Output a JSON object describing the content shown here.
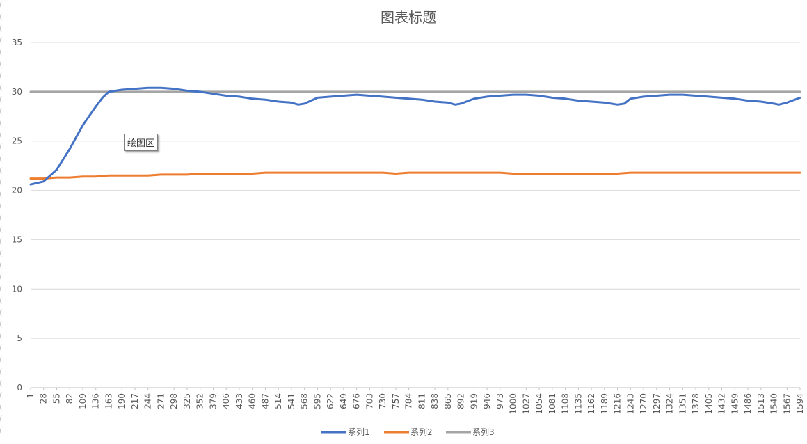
{
  "chart_data": {
    "type": "line",
    "title": "图表标题",
    "xlabel": "",
    "ylabel": "",
    "ylim": [
      0,
      35
    ],
    "yticks": [
      0,
      5,
      10,
      15,
      20,
      25,
      30,
      35
    ],
    "xlim": [
      1,
      1594
    ],
    "x_tick_labels": [
      1,
      28,
      55,
      82,
      109,
      136,
      163,
      190,
      217,
      244,
      271,
      298,
      325,
      352,
      379,
      406,
      433,
      460,
      487,
      514,
      541,
      568,
      595,
      622,
      649,
      676,
      703,
      730,
      757,
      784,
      811,
      838,
      865,
      892,
      919,
      946,
      973,
      1000,
      1027,
      1054,
      1081,
      1108,
      1135,
      1162,
      1189,
      1216,
      1243,
      1270,
      1297,
      1324,
      1351,
      1378,
      1405,
      1432,
      1459,
      1486,
      1513,
      1540,
      1567,
      1594
    ],
    "grid": true,
    "legend_position": "bottom",
    "series": [
      {
        "name": "系列1",
        "color": "#4472C4",
        "x": [
          1,
          28,
          55,
          82,
          109,
          136,
          150,
          163,
          190,
          217,
          244,
          271,
          298,
          325,
          352,
          379,
          406,
          433,
          460,
          487,
          514,
          541,
          555,
          568,
          595,
          622,
          649,
          676,
          703,
          730,
          757,
          784,
          811,
          838,
          865,
          880,
          892,
          919,
          946,
          973,
          1000,
          1027,
          1054,
          1081,
          1108,
          1135,
          1162,
          1189,
          1216,
          1230,
          1243,
          1270,
          1297,
          1324,
          1351,
          1378,
          1405,
          1432,
          1459,
          1486,
          1513,
          1540,
          1550,
          1567,
          1594
        ],
        "values": [
          20.6,
          20.9,
          22.1,
          24.2,
          26.6,
          28.5,
          29.4,
          30.0,
          30.2,
          30.3,
          30.4,
          30.4,
          30.3,
          30.1,
          30.0,
          29.8,
          29.6,
          29.5,
          29.3,
          29.2,
          29.0,
          28.9,
          28.7,
          28.8,
          29.4,
          29.5,
          29.6,
          29.7,
          29.6,
          29.5,
          29.4,
          29.3,
          29.2,
          29.0,
          28.9,
          28.7,
          28.8,
          29.3,
          29.5,
          29.6,
          29.7,
          29.7,
          29.6,
          29.4,
          29.3,
          29.1,
          29.0,
          28.9,
          28.7,
          28.8,
          29.3,
          29.5,
          29.6,
          29.7,
          29.7,
          29.6,
          29.5,
          29.4,
          29.3,
          29.1,
          29.0,
          28.8,
          28.7,
          28.9,
          29.4
        ]
      },
      {
        "name": "系列2",
        "color": "#ED7D31",
        "x": [
          1,
          28,
          55,
          82,
          109,
          136,
          163,
          190,
          217,
          244,
          271,
          298,
          325,
          352,
          379,
          406,
          433,
          460,
          487,
          514,
          541,
          568,
          595,
          622,
          649,
          676,
          703,
          730,
          757,
          784,
          811,
          838,
          865,
          892,
          919,
          946,
          973,
          1000,
          1027,
          1054,
          1081,
          1108,
          1135,
          1162,
          1189,
          1216,
          1243,
          1270,
          1297,
          1324,
          1351,
          1378,
          1405,
          1432,
          1459,
          1486,
          1513,
          1540,
          1567,
          1594
        ],
        "values": [
          21.2,
          21.2,
          21.3,
          21.3,
          21.4,
          21.4,
          21.5,
          21.5,
          21.5,
          21.5,
          21.6,
          21.6,
          21.6,
          21.7,
          21.7,
          21.7,
          21.7,
          21.7,
          21.8,
          21.8,
          21.8,
          21.8,
          21.8,
          21.8,
          21.8,
          21.8,
          21.8,
          21.8,
          21.7,
          21.8,
          21.8,
          21.8,
          21.8,
          21.8,
          21.8,
          21.8,
          21.8,
          21.7,
          21.7,
          21.7,
          21.7,
          21.7,
          21.7,
          21.7,
          21.7,
          21.7,
          21.8,
          21.8,
          21.8,
          21.8,
          21.8,
          21.8,
          21.8,
          21.8,
          21.8,
          21.8,
          21.8,
          21.8,
          21.8,
          21.8
        ]
      },
      {
        "name": "系列3",
        "color": "#A5A5A5",
        "x": [
          1,
          1594
        ],
        "values": [
          30,
          30
        ]
      }
    ]
  },
  "tooltip": {
    "label": "绘图区"
  }
}
